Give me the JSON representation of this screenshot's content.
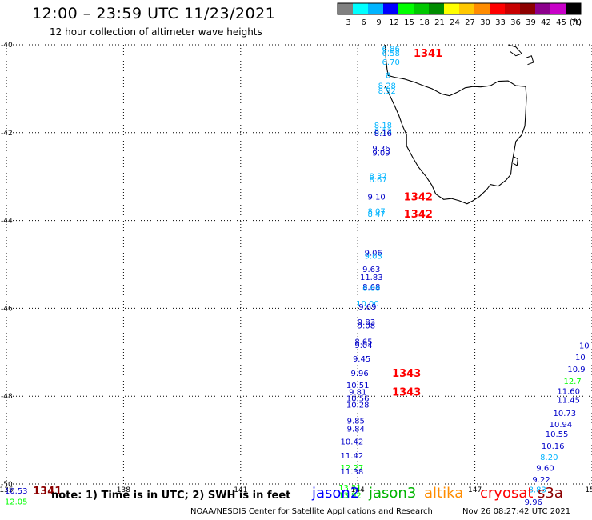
{
  "header": {
    "title": "12:00 – 23:59 UTC 11/23/2021",
    "subtitle": "12 hour collection of altimeter wave heights"
  },
  "legend": {
    "unit": "(ft)",
    "bins": [
      {
        "label": "3",
        "color": "#808080"
      },
      {
        "label": "6",
        "color": "#00ffff"
      },
      {
        "label": "9",
        "color": "#00b4ff"
      },
      {
        "label": "12",
        "color": "#0000ff"
      },
      {
        "label": "15",
        "color": "#00ff00"
      },
      {
        "label": "18",
        "color": "#00c800"
      },
      {
        "label": "21",
        "color": "#008c00"
      },
      {
        "label": "24",
        "color": "#ffff00"
      },
      {
        "label": "27",
        "color": "#ffc800"
      },
      {
        "label": "30",
        "color": "#ff8c00"
      },
      {
        "label": "33",
        "color": "#ff0000"
      },
      {
        "label": "36",
        "color": "#c80000"
      },
      {
        "label": "39",
        "color": "#8c0000"
      },
      {
        "label": "42",
        "color": "#8c008c"
      },
      {
        "label": "45",
        "color": "#c800c8"
      },
      {
        "label": "70",
        "color": "#000000"
      }
    ]
  },
  "footer": {
    "note": "note:  1) Time is in UTC; 2) SWH is in feet",
    "credit": "NOAA/NESDIS Center for Satellite Applications and Research",
    "timestamp": "Nov 26 08:27:42 UTC 2021",
    "satellites": [
      {
        "name": "jason2",
        "color": "#0000ff"
      },
      {
        "name": "jason3",
        "color": "#00b400"
      },
      {
        "name": "altika",
        "color": "#ff8c00"
      },
      {
        "name": "cryosat",
        "color": "#ff0000"
      },
      {
        "name": "s3a",
        "color": "#8c0000"
      }
    ]
  },
  "chart_data": {
    "type": "scatter",
    "title": "12:00 – 23:59 UTC 11/23/2021",
    "subtitle": "12 hour collection of altimeter wave heights",
    "xlabel": "",
    "ylabel": "",
    "xlim": [
      135,
      150
    ],
    "ylim": [
      -50,
      -40
    ],
    "x_ticks": [
      "135",
      "138",
      "141",
      "144",
      "147",
      "150"
    ],
    "y_ticks": [
      "-40",
      "-42",
      "-44",
      "-46",
      "-48",
      "-50"
    ],
    "grid": true,
    "colors": {
      "cyan": "#00b4ff",
      "blue": "#0000c8",
      "green": "#00ff00",
      "red": "#ff0000",
      "darkred": "#8c0000"
    },
    "wave_heights": [
      {
        "lon": 144.85,
        "lat": -40.08,
        "text": "6.86",
        "color": "cyan"
      },
      {
        "lon": 144.85,
        "lat": -40.18,
        "text": "6.58",
        "color": "cyan"
      },
      {
        "lon": 144.85,
        "lat": -40.38,
        "text": "6.70",
        "color": "cyan"
      },
      {
        "lon": 144.78,
        "lat": -40.68,
        "text": "8",
        "color": "cyan"
      },
      {
        "lon": 144.75,
        "lat": -40.92,
        "text": "8.28",
        "color": "cyan"
      },
      {
        "lon": 144.75,
        "lat": -41.04,
        "text": "8.92",
        "color": "cyan"
      },
      {
        "lon": 144.65,
        "lat": -41.82,
        "text": "8.18",
        "color": "cyan"
      },
      {
        "lon": 144.65,
        "lat": -41.96,
        "text": "8.13",
        "color": "cyan"
      },
      {
        "lon": 144.65,
        "lat": -42.0,
        "text": "8.16",
        "color": "blue"
      },
      {
        "lon": 144.6,
        "lat": -42.35,
        "text": "9.36",
        "color": "blue"
      },
      {
        "lon": 144.6,
        "lat": -42.45,
        "text": "9.09",
        "color": "blue"
      },
      {
        "lon": 144.52,
        "lat": -42.98,
        "text": "8.37",
        "color": "cyan"
      },
      {
        "lon": 144.52,
        "lat": -43.06,
        "text": "8.67",
        "color": "cyan"
      },
      {
        "lon": 144.48,
        "lat": -43.45,
        "text": "9.10",
        "color": "blue"
      },
      {
        "lon": 144.48,
        "lat": -43.78,
        "text": "8.07",
        "color": "cyan"
      },
      {
        "lon": 144.48,
        "lat": -43.84,
        "text": "8.47",
        "color": "cyan"
      },
      {
        "lon": 144.4,
        "lat": -44.73,
        "text": "9.06",
        "color": "blue"
      },
      {
        "lon": 144.4,
        "lat": -44.8,
        "text": "9.03",
        "color": "cyan"
      },
      {
        "lon": 144.35,
        "lat": -45.1,
        "text": "9.63",
        "color": "blue"
      },
      {
        "lon": 144.35,
        "lat": -45.28,
        "text": "11.83",
        "color": "blue"
      },
      {
        "lon": 144.35,
        "lat": -45.5,
        "text": "8.68",
        "color": "blue"
      },
      {
        "lon": 144.35,
        "lat": -45.53,
        "text": "8.88",
        "color": "cyan"
      },
      {
        "lon": 144.25,
        "lat": -45.88,
        "text": "10.00",
        "color": "cyan"
      },
      {
        "lon": 144.25,
        "lat": -45.96,
        "text": "9.69",
        "color": "blue"
      },
      {
        "lon": 144.22,
        "lat": -46.3,
        "text": "9.83",
        "color": "blue"
      },
      {
        "lon": 144.22,
        "lat": -46.38,
        "text": "9.08",
        "color": "blue"
      },
      {
        "lon": 144.15,
        "lat": -46.75,
        "text": "8.65",
        "color": "blue"
      },
      {
        "lon": 144.15,
        "lat": -46.83,
        "text": "9.04",
        "color": "blue"
      },
      {
        "lon": 144.1,
        "lat": -47.14,
        "text": "9.45",
        "color": "blue"
      },
      {
        "lon": 144.05,
        "lat": -47.47,
        "text": "9.96",
        "color": "blue"
      },
      {
        "lon": 144.0,
        "lat": -47.74,
        "text": "10.51",
        "color": "blue"
      },
      {
        "lon": 144.0,
        "lat": -47.9,
        "text": "9.81",
        "color": "blue"
      },
      {
        "lon": 144.0,
        "lat": -48.04,
        "text": "10.56",
        "color": "blue"
      },
      {
        "lon": 144.0,
        "lat": -48.19,
        "text": "10.28",
        "color": "blue"
      },
      {
        "lon": 143.95,
        "lat": -48.55,
        "text": "9.85",
        "color": "blue"
      },
      {
        "lon": 143.95,
        "lat": -48.73,
        "text": "9.84",
        "color": "blue"
      },
      {
        "lon": 143.85,
        "lat": -49.03,
        "text": "10.42",
        "color": "blue"
      },
      {
        "lon": 143.85,
        "lat": -49.34,
        "text": "11.42",
        "color": "blue"
      },
      {
        "lon": 143.85,
        "lat": -49.62,
        "text": "12.27",
        "color": "green"
      },
      {
        "lon": 143.85,
        "lat": -49.71,
        "text": "11.38",
        "color": "blue"
      },
      {
        "lon": 143.8,
        "lat": -50.07,
        "text": "13.31",
        "color": "green"
      },
      {
        "lon": 143.8,
        "lat": -50.25,
        "text": "13.92",
        "color": "green"
      },
      {
        "lon": 149.8,
        "lat": -46.84,
        "text": "10",
        "color": "blue"
      },
      {
        "lon": 149.7,
        "lat": -47.1,
        "text": "10",
        "color": "blue"
      },
      {
        "lon": 149.6,
        "lat": -47.38,
        "text": "10.9",
        "color": "blue"
      },
      {
        "lon": 149.5,
        "lat": -47.65,
        "text": "12.7",
        "color": "green"
      },
      {
        "lon": 149.4,
        "lat": -47.88,
        "text": "11.60",
        "color": "blue"
      },
      {
        "lon": 149.4,
        "lat": -48.08,
        "text": "11.45",
        "color": "blue"
      },
      {
        "lon": 149.3,
        "lat": -48.38,
        "text": "10.73",
        "color": "blue"
      },
      {
        "lon": 149.2,
        "lat": -48.63,
        "text": "10.94",
        "color": "blue"
      },
      {
        "lon": 149.1,
        "lat": -48.85,
        "text": "10.55",
        "color": "blue"
      },
      {
        "lon": 149.0,
        "lat": -49.13,
        "text": "10.16",
        "color": "blue"
      },
      {
        "lon": 148.9,
        "lat": -49.38,
        "text": "8.20",
        "color": "cyan"
      },
      {
        "lon": 148.8,
        "lat": -49.63,
        "text": "9.60",
        "color": "blue"
      },
      {
        "lon": 148.7,
        "lat": -49.89,
        "text": "9.22",
        "color": "blue"
      },
      {
        "lon": 148.6,
        "lat": -50.12,
        "text": "8.83",
        "color": "cyan"
      },
      {
        "lon": 148.5,
        "lat": -50.4,
        "text": "9.96",
        "color": "blue"
      },
      {
        "lon": 135.25,
        "lat": -50.15,
        "text": "10.53",
        "color": "blue"
      },
      {
        "lon": 135.25,
        "lat": -50.39,
        "text": "12.05",
        "color": "green"
      }
    ],
    "revolutions": [
      {
        "lon": 145.8,
        "lat": -40.18,
        "text": "1341",
        "color": "red"
      },
      {
        "lon": 145.55,
        "lat": -43.45,
        "text": "1342",
        "color": "red"
      },
      {
        "lon": 145.55,
        "lat": -43.84,
        "text": "1342",
        "color": "red"
      },
      {
        "lon": 145.25,
        "lat": -47.47,
        "text": "1343",
        "color": "red"
      },
      {
        "lon": 145.25,
        "lat": -47.9,
        "text": "1343",
        "color": "red"
      },
      {
        "lon": 136.05,
        "lat": -50.15,
        "text": "1341",
        "color": "darkred"
      }
    ],
    "coastline_name": "tasmania-coastline"
  }
}
